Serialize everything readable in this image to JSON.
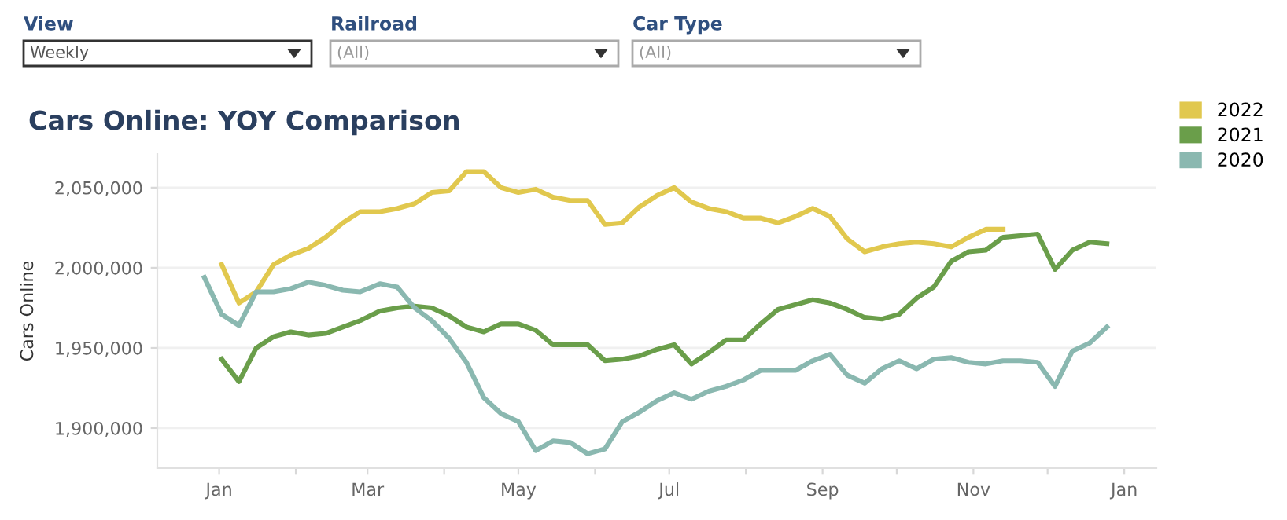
{
  "chart_data": {
    "type": "line",
    "title": "Cars Online: YOY Comparison",
    "ylabel": "Cars Online",
    "annotations": [
      "View",
      "Weekly",
      "Railroad",
      "(All)",
      "Car Type",
      "(All)"
    ],
    "x": [
      "2019-12-26",
      "2020-01-02",
      "2020-01-09",
      "2020-01-16",
      "2020-01-23",
      "2020-01-30",
      "2020-02-06",
      "2020-02-13",
      "2020-02-20",
      "2020-02-27",
      "2020-03-06",
      "2020-03-13",
      "2020-03-20",
      "2020-03-27",
      "2020-04-03",
      "2020-04-10",
      "2020-04-17",
      "2020-04-24",
      "2020-05-01",
      "2020-05-08",
      "2020-05-15",
      "2020-05-22",
      "2020-05-29",
      "2020-06-05",
      "2020-06-12",
      "2020-06-19",
      "2020-06-26",
      "2020-07-03",
      "2020-07-10",
      "2020-07-17",
      "2020-07-24",
      "2020-07-31",
      "2020-08-07",
      "2020-08-14",
      "2020-08-21",
      "2020-08-28",
      "2020-09-04",
      "2020-09-11",
      "2020-09-18",
      "2020-09-25",
      "2020-10-02",
      "2020-10-09",
      "2020-10-16",
      "2020-10-23",
      "2020-10-30",
      "2020-11-06",
      "2020-11-13",
      "2020-11-20",
      "2020-11-27",
      "2020-12-04",
      "2020-12-11",
      "2020-12-18",
      "2020-12-25"
    ],
    "xlim": [
      "2019-12-07",
      "2021-01-14"
    ],
    "xticks": [
      {
        "value": "2020-01-01",
        "label": "Jan"
      },
      {
        "value": "2020-02-01",
        "label": null
      },
      {
        "value": "2020-03-01",
        "label": "Mar"
      },
      {
        "value": "2020-04-01",
        "label": null
      },
      {
        "value": "2020-05-01",
        "label": "May"
      },
      {
        "value": "2020-06-01",
        "label": null
      },
      {
        "value": "2020-07-01",
        "label": "Jul"
      },
      {
        "value": "2020-08-01",
        "label": null
      },
      {
        "value": "2020-09-01",
        "label": "Sep"
      },
      {
        "value": "2020-10-01",
        "label": null
      },
      {
        "value": "2020-11-01",
        "label": "Nov"
      },
      {
        "value": "2020-12-01",
        "label": null
      },
      {
        "value": "2021-01-01",
        "label": "Jan"
      }
    ],
    "ylim": [
      1875000,
      2071000
    ],
    "yticks": [
      {
        "value": 1900000,
        "label": "1,900,000"
      },
      {
        "value": 1950000,
        "label": "1,950,000"
      },
      {
        "value": 2000000,
        "label": "2,000,000"
      },
      {
        "value": 2050000,
        "label": "2,050,000"
      }
    ],
    "grid": "y",
    "legend": "right",
    "marker": "none",
    "line_style": "solid",
    "series": [
      {
        "name": "2022",
        "color": "#e1c84e",
        "values": [
          null,
          2002000,
          1978000,
          1985000,
          2002000,
          2008000,
          2012000,
          2019000,
          2028000,
          2035000,
          2035000,
          2037000,
          2040000,
          2047000,
          2048000,
          2060000,
          2060000,
          2050000,
          2047000,
          2049000,
          2044000,
          2042000,
          2042000,
          2027000,
          2028000,
          2038000,
          2045000,
          2050000,
          2041000,
          2037000,
          2035000,
          2031000,
          2031000,
          2028000,
          2032000,
          2037000,
          2032000,
          2018000,
          2010000,
          2013000,
          2015000,
          2016000,
          2015000,
          2013000,
          2019000,
          2024000,
          2024000,
          null,
          null,
          null,
          null,
          null,
          null
        ]
      },
      {
        "name": "2021",
        "color": "#6a9e4a",
        "values": [
          null,
          1943000,
          1929000,
          1950000,
          1957000,
          1960000,
          1958000,
          1959000,
          1963000,
          1967000,
          1973000,
          1975000,
          1976000,
          1975000,
          1970000,
          1963000,
          1960000,
          1965000,
          1965000,
          1961000,
          1952000,
          1952000,
          1952000,
          1942000,
          1943000,
          1945000,
          1949000,
          1952000,
          1940000,
          1947000,
          1955000,
          1955000,
          1965000,
          1974000,
          1977000,
          1980000,
          1978000,
          1974000,
          1969000,
          1968000,
          1971000,
          1981000,
          1988000,
          2004000,
          2010000,
          2011000,
          2019000,
          2020000,
          2021000,
          1999000,
          2011000,
          2016000,
          2015000
        ]
      },
      {
        "name": "2020",
        "color": "#8ab8b0",
        "values": [
          1994000,
          1971000,
          1964000,
          1985000,
          1985000,
          1987000,
          1991000,
          1989000,
          1986000,
          1985000,
          1990000,
          1988000,
          1975000,
          1967000,
          1956000,
          1941000,
          1919000,
          1909000,
          1904000,
          1886000,
          1892000,
          1891000,
          1884000,
          1887000,
          1904000,
          1910000,
          1917000,
          1922000,
          1918000,
          1923000,
          1926000,
          1930000,
          1936000,
          1936000,
          1936000,
          1942000,
          1946000,
          1933000,
          1928000,
          1937000,
          1942000,
          1937000,
          1943000,
          1944000,
          1941000,
          1940000,
          1942000,
          1942000,
          1941000,
          1926000,
          1948000,
          1953000,
          1963000
        ]
      }
    ]
  }
}
